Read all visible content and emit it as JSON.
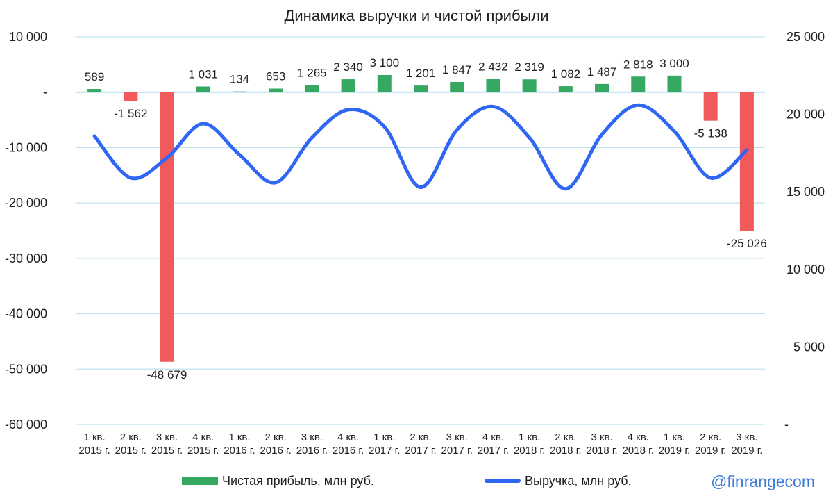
{
  "chart_data": {
    "type": "bar+line",
    "title": "Динамика выручки и чистой прибыли",
    "categories": [
      [
        "1 кв.",
        "2015 г."
      ],
      [
        "2 кв.",
        "2015 г."
      ],
      [
        "3 кв.",
        "2015 г."
      ],
      [
        "4 кв.",
        "2015 г."
      ],
      [
        "1 кв.",
        "2016 г."
      ],
      [
        "2 кв.",
        "2016 г."
      ],
      [
        "3 кв.",
        "2016 г."
      ],
      [
        "4 кв.",
        "2016 г."
      ],
      [
        "1 кв.",
        "2017 г."
      ],
      [
        "2 кв.",
        "2017 г."
      ],
      [
        "3 кв.",
        "2017 г."
      ],
      [
        "4 кв.",
        "2017 г."
      ],
      [
        "1 кв.",
        "2018 г."
      ],
      [
        "2 кв.",
        "2018 г."
      ],
      [
        "3 кв.",
        "2018 г."
      ],
      [
        "4 кв.",
        "2018 г."
      ],
      [
        "1 кв.",
        "2019 г."
      ],
      [
        "2 кв.",
        "2019 г."
      ],
      [
        "3 кв.",
        "2019 г."
      ]
    ],
    "series": [
      {
        "name": "Чистая прибыль, млн руб.",
        "kind": "bar",
        "axis": "left",
        "values": [
          589,
          -1562,
          -48679,
          1031,
          134,
          653,
          1265,
          2340,
          3100,
          1201,
          1847,
          2432,
          2319,
          1082,
          1487,
          2818,
          3000,
          -5138,
          -25026
        ],
        "labels": [
          "589",
          "-1 562",
          "-48 679",
          "1 031",
          "134",
          "653",
          "1 265",
          "2 340",
          "3 100",
          "1 201",
          "1 847",
          "2 432",
          "2 319",
          "1 082",
          "1 487",
          "2 818",
          "3 000",
          "-5 138",
          "-25 026"
        ]
      },
      {
        "name": "Выручка, млн руб.",
        "kind": "line",
        "axis": "right",
        "values": [
          18600,
          15900,
          17200,
          19400,
          17400,
          15600,
          18500,
          20300,
          19200,
          15300,
          19000,
          20500,
          18500,
          15200,
          18700,
          20600,
          18900,
          15900,
          17700
        ]
      }
    ],
    "left_axis": {
      "min": -60000,
      "max": 10000,
      "step": 10000,
      "tick_labels": [
        "-60 000",
        "-50 000",
        "-40 000",
        "-30 000",
        "-20 000",
        "-10 000",
        "-",
        "10 000"
      ]
    },
    "right_axis": {
      "min": 0,
      "max": 25000,
      "step": 5000,
      "tick_labels": [
        "-",
        "5 000",
        "10 000",
        "15 000",
        "20 000",
        "25 000"
      ]
    },
    "grid": true,
    "legend_position": "bottom",
    "colors": {
      "positive": "#37a862",
      "negative": "#f2595b",
      "line": "#2f66f2",
      "grid": "#bfe3ef",
      "axis": "#8fcfe3"
    }
  },
  "watermark": "@finrangecom"
}
